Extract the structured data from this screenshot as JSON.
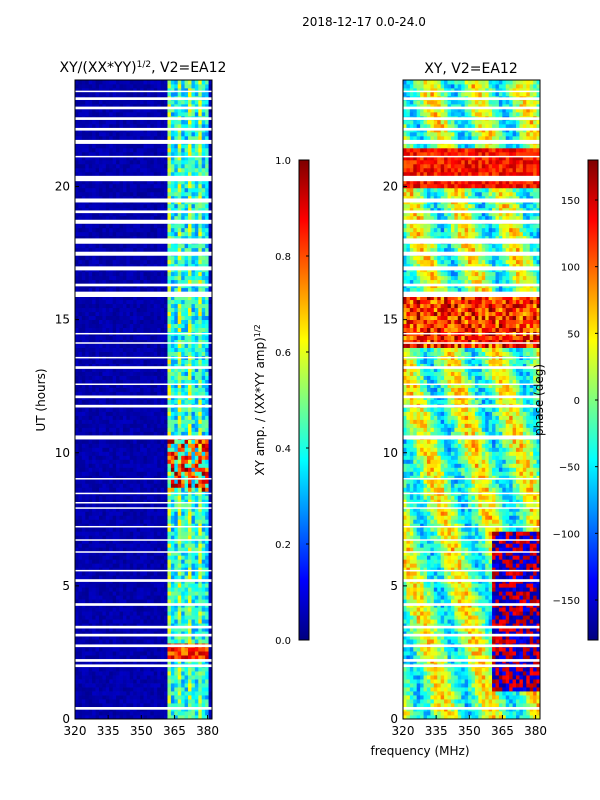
{
  "suptitle": "2018-12-17 0.0-24.0",
  "xlabel_shared": "frequency (MHz)",
  "colors": {
    "jet_stops": [
      "#00007f",
      "#0000ff",
      "#007fff",
      "#00ffff",
      "#7fff7f",
      "#ffff00",
      "#ff7f00",
      "#ff0000",
      "#7f0000"
    ],
    "flag": "#ffffff"
  },
  "chart_data": [
    {
      "type": "heatmap",
      "title_main": "XY/(XX*YY)",
      "title_sup": "1/2",
      "title_tail": ", V2=EA12",
      "xlabel": "",
      "ylabel": "UT (hours)",
      "xlim": [
        320,
        382
      ],
      "ylim": [
        0,
        24
      ],
      "xticks": [
        "320",
        "335",
        "350",
        "365",
        "380"
      ],
      "xtick_values": [
        320,
        335,
        350,
        365,
        380
      ],
      "yticks": [
        "0",
        "5",
        "10",
        "15",
        "20"
      ],
      "ytick_values": [
        0,
        5,
        10,
        15,
        20
      ],
      "colorbar": {
        "label_main": "XY amp. / (XX*YY amp)",
        "label_sup": "1/2",
        "range": [
          0.0,
          1.0
        ],
        "ticks": [
          "0.0",
          "0.2",
          "0.4",
          "0.6",
          "0.8",
          "1.0"
        ],
        "tick_values": [
          0.0,
          0.2,
          0.4,
          0.6,
          0.8,
          1.0
        ]
      }
    },
    {
      "type": "heatmap",
      "title_main": "XY, V2=EA12",
      "title_sup": "",
      "title_tail": "",
      "xlabel": "frequency (MHz)",
      "ylabel": "",
      "xlim": [
        320,
        382
      ],
      "ylim": [
        0,
        24
      ],
      "xticks": [
        "320",
        "335",
        "350",
        "365",
        "380"
      ],
      "xtick_values": [
        320,
        335,
        350,
        365,
        380
      ],
      "yticks": [
        "0",
        "5",
        "10",
        "15",
        "20"
      ],
      "ytick_values": [
        0,
        5,
        10,
        15,
        20
      ],
      "colorbar": {
        "label_main": "phase (deg)",
        "label_sup": "",
        "range": [
          -180,
          180
        ],
        "ticks": [
          "−150",
          "−100",
          "−50",
          "0",
          "50",
          "100",
          "150"
        ],
        "tick_values": [
          -150,
          -100,
          -50,
          0,
          50,
          100,
          150
        ]
      }
    }
  ],
  "flagged_time_bands_hours": [
    [
      0.35,
      0.45
    ],
    [
      1.95,
      2.05
    ],
    [
      2.15,
      2.25
    ],
    [
      2.7,
      2.8
    ],
    [
      3.1,
      3.2
    ],
    [
      3.4,
      3.5
    ],
    [
      4.25,
      4.35
    ],
    [
      5.15,
      5.25
    ],
    [
      5.55,
      5.6
    ],
    [
      6.25,
      6.3
    ],
    [
      6.7,
      6.75
    ],
    [
      7.2,
      7.25
    ],
    [
      7.9,
      7.95
    ],
    [
      8.1,
      8.15
    ],
    [
      8.45,
      8.5
    ],
    [
      9.0,
      9.05
    ],
    [
      10.5,
      10.65
    ],
    [
      11.7,
      11.8
    ],
    [
      12.05,
      12.15
    ],
    [
      12.55,
      12.6
    ],
    [
      13.15,
      13.25
    ],
    [
      13.55,
      13.6
    ],
    [
      14.1,
      14.15
    ],
    [
      14.45,
      14.5
    ],
    [
      15.85,
      16.05
    ],
    [
      16.25,
      16.35
    ],
    [
      16.85,
      17.0
    ],
    [
      17.4,
      17.55
    ],
    [
      17.85,
      18.05
    ],
    [
      18.6,
      18.75
    ],
    [
      19.0,
      19.1
    ],
    [
      19.4,
      19.55
    ],
    [
      20.2,
      20.4
    ],
    [
      21.1,
      21.15
    ],
    [
      21.6,
      21.75
    ],
    [
      22.1,
      22.2
    ],
    [
      22.5,
      22.6
    ],
    [
      22.9,
      23.0
    ],
    [
      23.25,
      23.35
    ],
    [
      23.55,
      23.6
    ]
  ]
}
